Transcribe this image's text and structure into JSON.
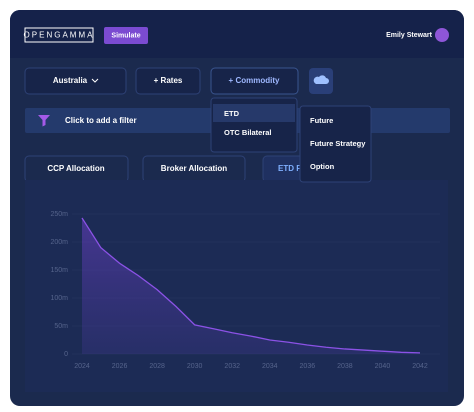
{
  "header": {
    "logo": "OPENGAMMA",
    "simulate": "Simulate",
    "user": "Emily Stewart"
  },
  "toolbar": {
    "region": "Australia",
    "rates": "+ Rates",
    "commodity": "+ Commodity"
  },
  "filter": {
    "placeholder": "Click to add a filter"
  },
  "dropdown": {
    "items": [
      "ETD",
      "OTC Bilateral"
    ]
  },
  "submenu": {
    "items": [
      "Future",
      "Future Strategy",
      "Option"
    ]
  },
  "tabs": [
    "CCP Allocation",
    "Broker Allocation",
    "ETD F"
  ],
  "chart_data": {
    "type": "area",
    "color": "#8b52e6",
    "x": [
      2024,
      2025,
      2026,
      2027,
      2028,
      2029,
      2030,
      2031,
      2032,
      2033,
      2034,
      2035,
      2036,
      2037,
      2038,
      2039,
      2040,
      2041,
      2042
    ],
    "values": [
      243,
      190,
      162,
      140,
      115,
      85,
      52,
      45,
      38,
      32,
      25,
      21,
      16,
      12,
      9,
      7,
      5,
      3,
      2
    ],
    "xlim": [
      2024,
      2042
    ],
    "xticks": [
      2024,
      2026,
      2028,
      2030,
      2032,
      2034,
      2036,
      2038,
      2040,
      2042
    ],
    "ylim": [
      0,
      250
    ],
    "yticks": [
      0,
      {
        "value": 50,
        "label": "50m"
      },
      {
        "value": 100,
        "label": "100m"
      },
      {
        "value": 150,
        "label": "150m"
      },
      {
        "value": 200,
        "label": "200m"
      },
      {
        "value": 250,
        "label": "250m"
      }
    ],
    "grid": true
  }
}
